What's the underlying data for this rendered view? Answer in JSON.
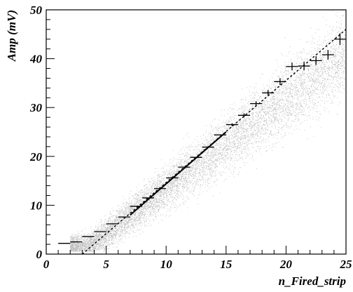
{
  "chart_data": {
    "type": "scatter",
    "xlabel": "n_Fired_strip",
    "ylabel": "Amp (mV)",
    "xlim": [
      0,
      25
    ],
    "ylim": [
      0,
      50
    ],
    "x_ticks": [
      "0",
      "5",
      "10",
      "15",
      "20",
      "25"
    ],
    "y_ticks": [
      "0",
      "10",
      "20",
      "30",
      "40",
      "50"
    ],
    "grid": false,
    "series": [
      {
        "kind": "profile",
        "x": [
          1.5,
          2.5,
          3.5,
          4.5,
          5.5,
          6.5,
          7.5,
          8.5,
          9.5,
          10.5,
          11.5,
          12.5,
          13.5,
          14.5,
          15.5,
          16.5,
          17.5,
          18.5,
          19.5,
          20.5,
          21.5,
          22.5,
          23.5,
          24.5
        ],
        "y": [
          2.2,
          2.5,
          3.6,
          4.6,
          6.2,
          7.6,
          9.8,
          11.5,
          13.4,
          15.6,
          17.8,
          19.8,
          21.9,
          24.4,
          26.5,
          28.4,
          30.8,
          33.0,
          35.3,
          38.4,
          38.5,
          39.6,
          40.8,
          44.0
        ],
        "y_err": [
          0.0,
          0.0,
          0.0,
          0.0,
          0.0,
          0.0,
          0.0,
          0.0,
          0.0,
          0.0,
          0.0,
          0.0,
          0.0,
          0.0,
          0.3,
          0.4,
          0.5,
          0.6,
          0.7,
          0.8,
          0.9,
          0.9,
          1.0,
          1.2
        ]
      },
      {
        "kind": "fit-solid",
        "x": [
          7.0,
          15.0
        ],
        "y": [
          8.0,
          25.0
        ]
      },
      {
        "kind": "fit-dashed",
        "x": [
          3.0,
          25.0
        ],
        "y": [
          0.0,
          46.0
        ]
      }
    ]
  },
  "scatter_seed": 12345,
  "scatter_count": 9000
}
